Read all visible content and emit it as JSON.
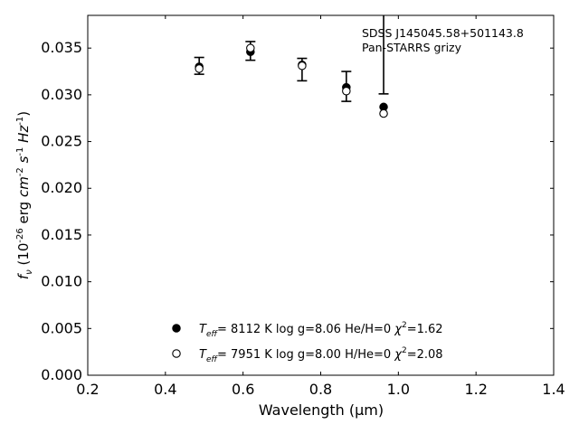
{
  "chart_data": {
    "type": "scatter",
    "title": "",
    "xlabel": "Wavelength (μm)",
    "ylabel": "f_ν (10^-26 erg cm^-2 s^-1 Hz^-1)",
    "xlim": [
      0.2,
      1.4
    ],
    "ylim": [
      0.0,
      0.0385
    ],
    "x_ticks": [
      "0.2",
      "0.4",
      "0.6",
      "0.8",
      "1.0",
      "1.2",
      "1.4"
    ],
    "y_ticks": [
      "0.000",
      "0.005",
      "0.010",
      "0.015",
      "0.020",
      "0.025",
      "0.030",
      "0.035"
    ],
    "annotation": [
      "SDSS J145045.58+501143.8",
      "Pan-STARRS grizy"
    ],
    "observed": {
      "x": [
        0.487,
        0.619,
        0.752,
        0.866,
        0.962
      ],
      "y": [
        0.0331,
        0.0347,
        0.0327,
        0.0309,
        0.0356
      ],
      "yerr": [
        0.0009,
        0.001,
        0.0012,
        0.0016,
        0.0055
      ]
    },
    "series": [
      {
        "marker": "filled-circle",
        "x": [
          0.487,
          0.619,
          0.752,
          0.866,
          0.962
        ],
        "y": [
          0.033,
          0.0346,
          0.0332,
          0.0308,
          0.0287
        ],
        "label_parts": [
          "T",
          "eff",
          "=  8112 K  log g=8.06  He/H=0  ",
          "χ",
          "2",
          "=1.62"
        ]
      },
      {
        "marker": "open-circle",
        "x": [
          0.487,
          0.619,
          0.752,
          0.866,
          0.962
        ],
        "y": [
          0.0328,
          0.035,
          0.0331,
          0.0304,
          0.028
        ],
        "label_parts": [
          "T",
          "eff",
          "=  7951 K  log g=8.00  H/He=0  ",
          "χ",
          "2",
          "=2.08"
        ]
      }
    ],
    "legend_position": "lower-center",
    "grid": false
  }
}
